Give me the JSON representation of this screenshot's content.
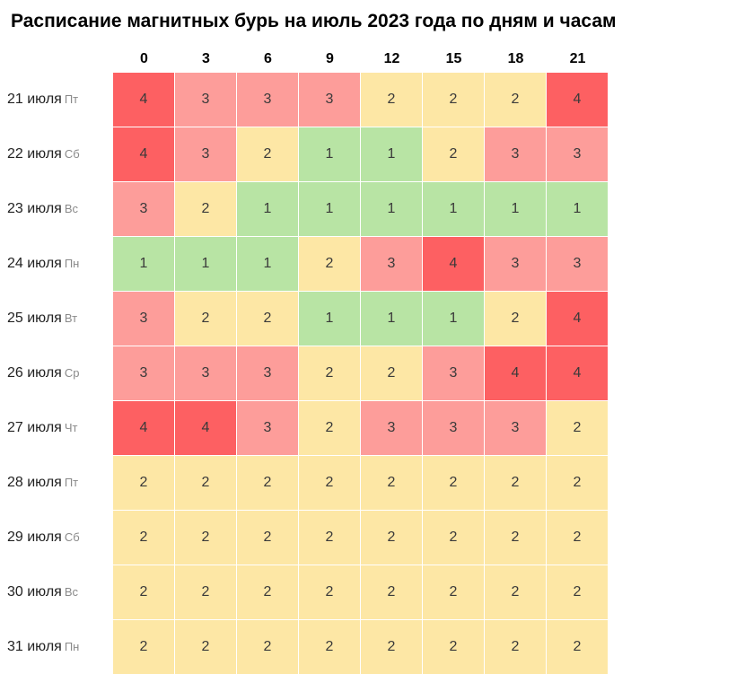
{
  "chart_data": {
    "type": "heatmap",
    "title": "Расписание магнитных бурь на июль 2023 года по дням и часам",
    "columns": [
      "0",
      "3",
      "6",
      "9",
      "12",
      "15",
      "18",
      "21"
    ],
    "rows": [
      {
        "date": "21 июля",
        "dow": "Пт",
        "values": [
          4,
          3,
          3,
          3,
          2,
          2,
          2,
          4
        ]
      },
      {
        "date": "22 июля",
        "dow": "Сб",
        "values": [
          4,
          3,
          2,
          1,
          1,
          2,
          3,
          3
        ]
      },
      {
        "date": "23 июля",
        "dow": "Вс",
        "values": [
          3,
          2,
          1,
          1,
          1,
          1,
          1,
          1
        ]
      },
      {
        "date": "24 июля",
        "dow": "Пн",
        "values": [
          1,
          1,
          1,
          2,
          3,
          4,
          3,
          3
        ]
      },
      {
        "date": "25 июля",
        "dow": "Вт",
        "values": [
          3,
          2,
          2,
          1,
          1,
          1,
          2,
          4
        ]
      },
      {
        "date": "26 июля",
        "dow": "Ср",
        "values": [
          3,
          3,
          3,
          2,
          2,
          3,
          4,
          4
        ]
      },
      {
        "date": "27 июля",
        "dow": "Чт",
        "values": [
          4,
          4,
          3,
          2,
          3,
          3,
          3,
          2
        ]
      },
      {
        "date": "28 июля",
        "dow": "Пт",
        "values": [
          2,
          2,
          2,
          2,
          2,
          2,
          2,
          2
        ]
      },
      {
        "date": "29 июля",
        "dow": "Сб",
        "values": [
          2,
          2,
          2,
          2,
          2,
          2,
          2,
          2
        ]
      },
      {
        "date": "30 июля",
        "dow": "Вс",
        "values": [
          2,
          2,
          2,
          2,
          2,
          2,
          2,
          2
        ]
      },
      {
        "date": "31 июля",
        "dow": "Пн",
        "values": [
          2,
          2,
          2,
          2,
          2,
          2,
          2,
          2
        ]
      }
    ],
    "color_scale": {
      "1": "#b8e4a4",
      "2": "#fde7a5",
      "3": "#fd9d9a",
      "4": "#fd6062"
    }
  }
}
